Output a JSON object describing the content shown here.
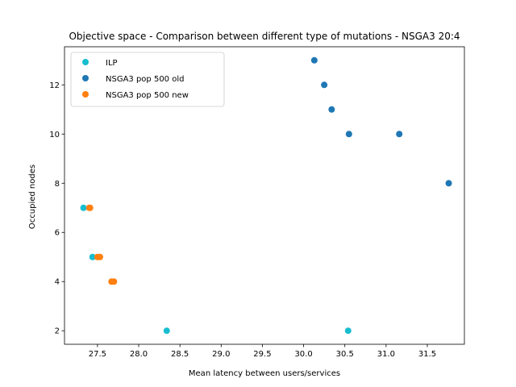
{
  "chart_data": {
    "type": "scatter",
    "title": "Objective space - Comparison between different type of mutations - NSGA3 20:4",
    "xlabel": "Mean latency between users/services",
    "ylabel": "Occupied nodes",
    "xlim": [
      27.1,
      31.95
    ],
    "ylim": [
      1.45,
      13.55
    ],
    "xticks": [
      "27.5",
      "28.0",
      "28.5",
      "29.0",
      "29.5",
      "30.0",
      "30.5",
      "31.0",
      "31.5"
    ],
    "yticks": [
      "2",
      "4",
      "6",
      "8",
      "10",
      "12"
    ],
    "legend_position": "top-left",
    "grid": false,
    "series": [
      {
        "name": "ILP",
        "color": "#17becf",
        "points": [
          [
            27.33,
            7
          ],
          [
            27.44,
            5
          ],
          [
            28.34,
            2
          ],
          [
            30.54,
            2
          ]
        ]
      },
      {
        "name": "NSGA3 pop 500 old",
        "color": "#1f77b4",
        "points": [
          [
            30.13,
            13
          ],
          [
            30.25,
            12
          ],
          [
            30.34,
            11
          ],
          [
            30.55,
            10
          ],
          [
            31.16,
            10
          ],
          [
            31.76,
            8
          ]
        ]
      },
      {
        "name": "NSGA3 pop 500 new",
        "color": "#ff7f0e",
        "points": [
          [
            27.4,
            7
          ],
          [
            27.41,
            7
          ],
          [
            27.5,
            5
          ],
          [
            27.53,
            5
          ],
          [
            27.67,
            4
          ],
          [
            27.7,
            4
          ]
        ]
      }
    ]
  }
}
